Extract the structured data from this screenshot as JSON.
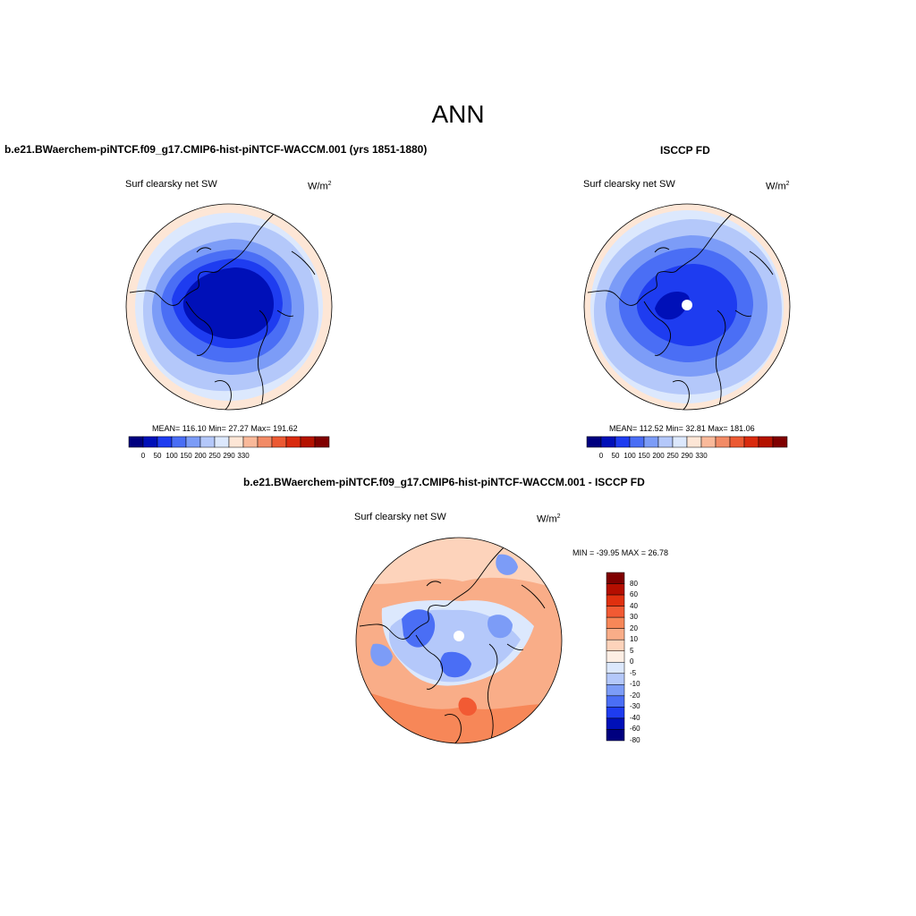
{
  "figure": {
    "title": "ANN"
  },
  "panels": {
    "top_left": {
      "title": "b.e21.BWaerchem-piNTCF.f09_g17.CMIP6-hist-piNTCF-WACCM.001 (yrs 1851-1880)",
      "subtitle": "Surf clearsky net SW",
      "units_base": "W/m",
      "units_exp": "2",
      "stats": "MEAN= 116.10  Min=  27.27  Max= 191.62",
      "colorbar_ticks": [
        "0",
        "50",
        "100",
        "150",
        "200",
        "250",
        "290",
        "330"
      ]
    },
    "top_right": {
      "title": "ISCCP FD",
      "subtitle": "Surf clearsky net SW",
      "units_base": "W/m",
      "units_exp": "2",
      "stats": "MEAN= 112.52  Min=  32.81  Max= 181.06",
      "colorbar_ticks": [
        "0",
        "50",
        "100",
        "150",
        "200",
        "250",
        "290",
        "330"
      ]
    },
    "bottom": {
      "title": "b.e21.BWaerchem-piNTCF.f09_g17.CMIP6-hist-piNTCF-WACCM.001 - ISCCP FD",
      "subtitle": "Surf clearsky net SW",
      "units_base": "W/m",
      "units_exp": "2",
      "stats": "MIN = -39.95 MAX =  26.78",
      "colorbar_ticks": [
        "80",
        "60",
        "40",
        "30",
        "20",
        "10",
        "5",
        "0",
        "-5",
        "-10",
        "-20",
        "-30",
        "-40",
        "-60",
        "-80"
      ]
    }
  },
  "colors": {
    "seq_colorbar": [
      "#00007f",
      "#0010b8",
      "#1e3cf0",
      "#4a6ef5",
      "#7c9cf7",
      "#b4c8fa",
      "#dce8fd",
      "#fde6d6",
      "#f9b99a",
      "#f28b66",
      "#ec5a33",
      "#d92b0e",
      "#b41200",
      "#800000"
    ],
    "diff_colorbar": [
      "#7f0000",
      "#b40e00",
      "#e0300f",
      "#f25a33",
      "#f78758",
      "#f9ad88",
      "#fdd3bb",
      "#fdeee4",
      "#dce8fd",
      "#b4c8fa",
      "#7c9cf7",
      "#4a6ef5",
      "#1e3cf0",
      "#0010b8",
      "#00007f"
    ],
    "coast": "#000000"
  }
}
